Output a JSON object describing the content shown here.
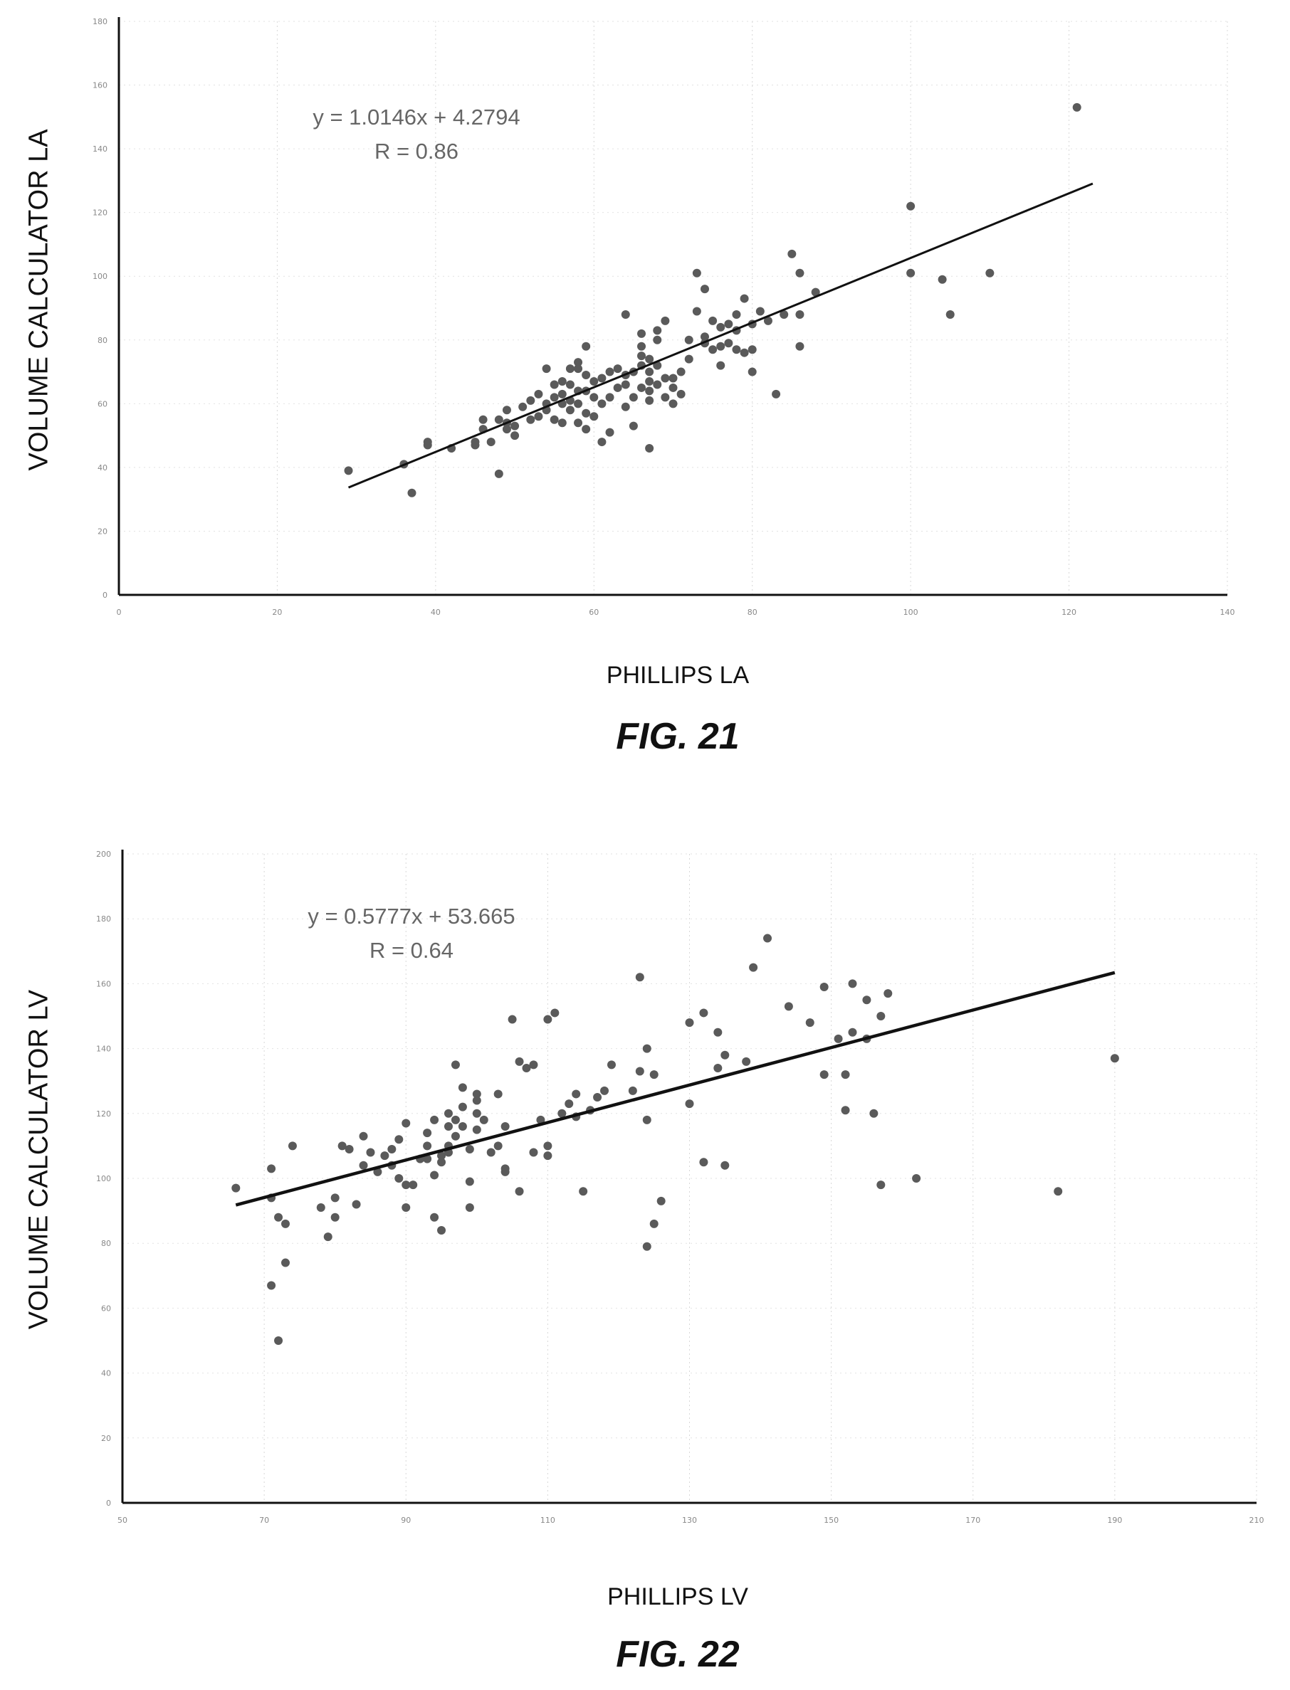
{
  "chart_data": [
    {
      "type": "scatter",
      "caption": "FIG. 21",
      "xlabel": "PHILLIPS LA",
      "ylabel": "VOLUME CALCULATOR LA",
      "equation": "y = 1.0146x + 4.2794",
      "r_value": "R = 0.86",
      "xlim": [
        0,
        140
      ],
      "ylim": [
        0,
        180
      ],
      "xticks": [
        "0",
        "20",
        "40",
        "60",
        "80",
        "100",
        "120",
        "140"
      ],
      "yticks": [
        "0",
        "20",
        "40",
        "60",
        "80",
        "100",
        "120",
        "140",
        "160",
        "180"
      ],
      "trendline": {
        "slope": 1.0146,
        "intercept": 4.2794,
        "x_range": [
          29,
          123
        ]
      },
      "points": [
        [
          29,
          39
        ],
        [
          36,
          41
        ],
        [
          37,
          32
        ],
        [
          39,
          48
        ],
        [
          39,
          47
        ],
        [
          42,
          46
        ],
        [
          45,
          48
        ],
        [
          45,
          47
        ],
        [
          46,
          52
        ],
        [
          46,
          55
        ],
        [
          47,
          48
        ],
        [
          48,
          38
        ],
        [
          48,
          55
        ],
        [
          49,
          54
        ],
        [
          49,
          52
        ],
        [
          49,
          58
        ],
        [
          50,
          53
        ],
        [
          50,
          50
        ],
        [
          51,
          59
        ],
        [
          52,
          55
        ],
        [
          52,
          61
        ],
        [
          53,
          56
        ],
        [
          53,
          63
        ],
        [
          54,
          58
        ],
        [
          54,
          60
        ],
        [
          54,
          71
        ],
        [
          55,
          55
        ],
        [
          55,
          62
        ],
        [
          55,
          66
        ],
        [
          56,
          54
        ],
        [
          56,
          60
        ],
        [
          56,
          63
        ],
        [
          56,
          67
        ],
        [
          57,
          58
        ],
        [
          57,
          61
        ],
        [
          57,
          66
        ],
        [
          57,
          71
        ],
        [
          58,
          54
        ],
        [
          58,
          60
        ],
        [
          58,
          64
        ],
        [
          58,
          71
        ],
        [
          58,
          73
        ],
        [
          59,
          52
        ],
        [
          59,
          57
        ],
        [
          59,
          64
        ],
        [
          59,
          69
        ],
        [
          59,
          78
        ],
        [
          60,
          56
        ],
        [
          60,
          62
        ],
        [
          60,
          67
        ],
        [
          61,
          48
        ],
        [
          61,
          60
        ],
        [
          61,
          68
        ],
        [
          62,
          51
        ],
        [
          62,
          62
        ],
        [
          62,
          70
        ],
        [
          63,
          65
        ],
        [
          63,
          71
        ],
        [
          64,
          59
        ],
        [
          64,
          66
        ],
        [
          64,
          69
        ],
        [
          64,
          88
        ],
        [
          65,
          53
        ],
        [
          65,
          62
        ],
        [
          65,
          70
        ],
        [
          66,
          65
        ],
        [
          66,
          72
        ],
        [
          66,
          75
        ],
        [
          66,
          78
        ],
        [
          66,
          82
        ],
        [
          67,
          46
        ],
        [
          67,
          61
        ],
        [
          67,
          64
        ],
        [
          67,
          67
        ],
        [
          67,
          70
        ],
        [
          67,
          74
        ],
        [
          68,
          66
        ],
        [
          68,
          72
        ],
        [
          68,
          80
        ],
        [
          68,
          83
        ],
        [
          69,
          62
        ],
        [
          69,
          68
        ],
        [
          69,
          86
        ],
        [
          70,
          60
        ],
        [
          70,
          65
        ],
        [
          70,
          68
        ],
        [
          71,
          63
        ],
        [
          71,
          70
        ],
        [
          72,
          74
        ],
        [
          72,
          80
        ],
        [
          73,
          89
        ],
        [
          73,
          101
        ],
        [
          74,
          79
        ],
        [
          74,
          81
        ],
        [
          74,
          96
        ],
        [
          75,
          77
        ],
        [
          75,
          86
        ],
        [
          76,
          72
        ],
        [
          76,
          78
        ],
        [
          76,
          84
        ],
        [
          77,
          79
        ],
        [
          77,
          85
        ],
        [
          78,
          77
        ],
        [
          78,
          83
        ],
        [
          78,
          88
        ],
        [
          79,
          76
        ],
        [
          79,
          93
        ],
        [
          80,
          70
        ],
        [
          80,
          77
        ],
        [
          80,
          85
        ],
        [
          81,
          89
        ],
        [
          82,
          86
        ],
        [
          83,
          63
        ],
        [
          84,
          88
        ],
        [
          85,
          107
        ],
        [
          86,
          78
        ],
        [
          86,
          88
        ],
        [
          86,
          101
        ],
        [
          88,
          95
        ],
        [
          100,
          122
        ],
        [
          100,
          101
        ],
        [
          104,
          99
        ],
        [
          105,
          88
        ],
        [
          110,
          101
        ],
        [
          121,
          153
        ]
      ]
    },
    {
      "type": "scatter",
      "caption": "FIG. 22",
      "xlabel": "PHILLIPS LV",
      "ylabel": "VOLUME CALCULATOR LV",
      "equation": "y = 0.5777x + 53.665",
      "r_value": "R = 0.64",
      "xlim": [
        50,
        210
      ],
      "ylim": [
        0,
        200
      ],
      "xticks": [
        "50",
        "70",
        "90",
        "110",
        "130",
        "150",
        "170",
        "190",
        "210"
      ],
      "yticks": [
        "0",
        "20",
        "40",
        "60",
        "80",
        "100",
        "120",
        "140",
        "160",
        "180",
        "200"
      ],
      "trendline": {
        "slope": 0.5777,
        "intercept": 53.665,
        "x_range": [
          66,
          190
        ]
      },
      "points": [
        [
          66,
          97
        ],
        [
          71,
          94
        ],
        [
          71,
          67
        ],
        [
          71,
          103
        ],
        [
          72,
          88
        ],
        [
          72,
          50
        ],
        [
          73,
          86
        ],
        [
          73,
          74
        ],
        [
          74,
          110
        ],
        [
          78,
          91
        ],
        [
          79,
          82
        ],
        [
          80,
          94
        ],
        [
          80,
          88
        ],
        [
          81,
          110
        ],
        [
          82,
          109
        ],
        [
          83,
          92
        ],
        [
          84,
          113
        ],
        [
          84,
          104
        ],
        [
          85,
          108
        ],
        [
          86,
          102
        ],
        [
          87,
          107
        ],
        [
          88,
          109
        ],
        [
          88,
          104
        ],
        [
          89,
          112
        ],
        [
          89,
          100
        ],
        [
          90,
          98
        ],
        [
          90,
          117
        ],
        [
          90,
          91
        ],
        [
          91,
          98
        ],
        [
          92,
          106
        ],
        [
          93,
          106
        ],
        [
          93,
          110
        ],
        [
          93,
          114
        ],
        [
          94,
          101
        ],
        [
          94,
          88
        ],
        [
          94,
          118
        ],
        [
          95,
          105
        ],
        [
          95,
          84
        ],
        [
          95,
          107
        ],
        [
          96,
          116
        ],
        [
          96,
          110
        ],
        [
          96,
          108
        ],
        [
          96,
          120
        ],
        [
          97,
          135
        ],
        [
          97,
          113
        ],
        [
          97,
          118
        ],
        [
          98,
          128
        ],
        [
          98,
          122
        ],
        [
          98,
          116
        ],
        [
          99,
          109
        ],
        [
          99,
          99
        ],
        [
          99,
          91
        ],
        [
          100,
          115
        ],
        [
          100,
          126
        ],
        [
          100,
          120
        ],
        [
          100,
          124
        ],
        [
          101,
          118
        ],
        [
          102,
          108
        ],
        [
          103,
          110
        ],
        [
          103,
          126
        ],
        [
          104,
          102
        ],
        [
          104,
          103
        ],
        [
          104,
          116
        ],
        [
          105,
          149
        ],
        [
          106,
          96
        ],
        [
          106,
          136
        ],
        [
          107,
          134
        ],
        [
          108,
          108
        ],
        [
          108,
          135
        ],
        [
          109,
          118
        ],
        [
          110,
          149
        ],
        [
          110,
          110
        ],
        [
          110,
          107
        ],
        [
          111,
          151
        ],
        [
          112,
          120
        ],
        [
          113,
          123
        ],
        [
          114,
          126
        ],
        [
          114,
          119
        ],
        [
          115,
          96
        ],
        [
          116,
          121
        ],
        [
          117,
          125
        ],
        [
          118,
          127
        ],
        [
          119,
          135
        ],
        [
          122,
          127
        ],
        [
          123,
          162
        ],
        [
          123,
          133
        ],
        [
          124,
          79
        ],
        [
          124,
          118
        ],
        [
          124,
          140
        ],
        [
          125,
          132
        ],
        [
          125,
          86
        ],
        [
          126,
          93
        ],
        [
          130,
          148
        ],
        [
          130,
          123
        ],
        [
          132,
          105
        ],
        [
          132,
          151
        ],
        [
          134,
          134
        ],
        [
          134,
          145
        ],
        [
          135,
          138
        ],
        [
          135,
          104
        ],
        [
          138,
          136
        ],
        [
          139,
          165
        ],
        [
          141,
          174
        ],
        [
          144,
          153
        ],
        [
          147,
          148
        ],
        [
          149,
          159
        ],
        [
          149,
          132
        ],
        [
          151,
          143
        ],
        [
          152,
          121
        ],
        [
          152,
          132
        ],
        [
          153,
          160
        ],
        [
          153,
          145
        ],
        [
          155,
          143
        ],
        [
          155,
          155
        ],
        [
          156,
          120
        ],
        [
          157,
          150
        ],
        [
          157,
          98
        ],
        [
          158,
          157
        ],
        [
          162,
          100
        ],
        [
          182,
          96
        ],
        [
          190,
          137
        ]
      ]
    }
  ]
}
